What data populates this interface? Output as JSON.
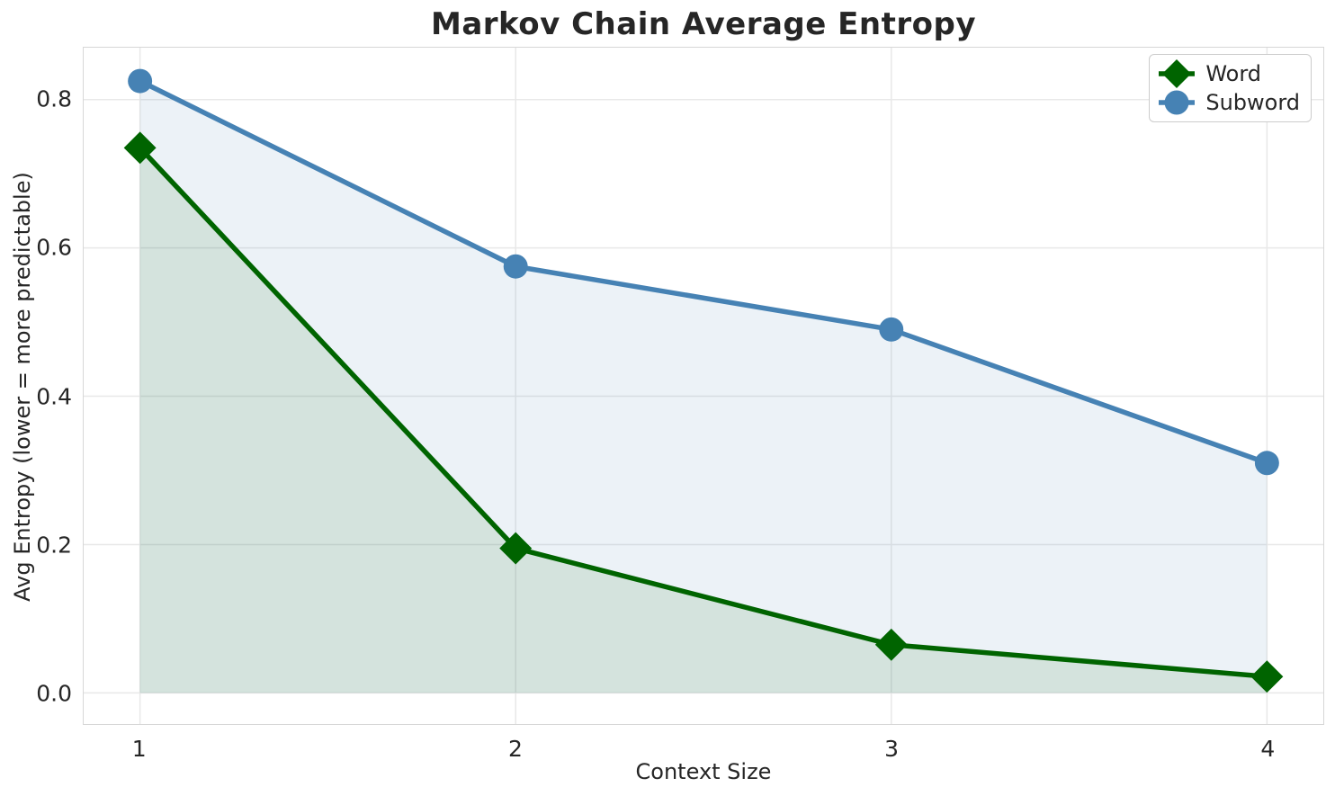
{
  "chart_data": {
    "type": "line",
    "title": "Markov Chain Average Entropy",
    "xlabel": "Context Size",
    "ylabel": "Avg Entropy (lower = more predictable)",
    "x": [
      1,
      2,
      3,
      4
    ],
    "series": [
      {
        "name": "Word",
        "color": "#006400",
        "marker": "diamond",
        "values": [
          0.735,
          0.195,
          0.065,
          0.022
        ],
        "fill_to_zero": true
      },
      {
        "name": "Subword",
        "color": "#4682b4",
        "marker": "circle",
        "values": [
          0.825,
          0.575,
          0.49,
          0.31
        ],
        "fill_to_zero": true
      }
    ],
    "xlim": [
      0.85,
      4.15
    ],
    "ylim": [
      -0.042,
      0.87
    ],
    "xticks": [
      {
        "label": "1",
        "value": 1
      },
      {
        "label": "2",
        "value": 2
      },
      {
        "label": "3",
        "value": 3
      },
      {
        "label": "4",
        "value": 4
      }
    ],
    "yticks": [
      {
        "label": "0.0",
        "value": 0.0
      },
      {
        "label": "0.2",
        "value": 0.2
      },
      {
        "label": "0.4",
        "value": 0.4
      },
      {
        "label": "0.6",
        "value": 0.6
      },
      {
        "label": "0.8",
        "value": 0.8
      }
    ],
    "grid": true,
    "legend": {
      "position": "top-right",
      "entries": [
        "Word",
        "Subword"
      ]
    },
    "style": {
      "grid_color": "#e8e8e8",
      "spine_color": "#d7d7d7",
      "text_color": "#262626",
      "background_color": "#ffffff",
      "fill_alpha": 0.1,
      "line_width": 5.5
    }
  }
}
